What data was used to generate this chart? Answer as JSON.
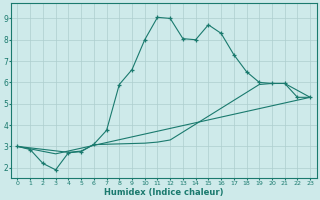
{
  "title": "",
  "xlabel": "Humidex (Indice chaleur)",
  "ylabel": "",
  "xlim": [
    -0.5,
    23.5
  ],
  "ylim": [
    1.5,
    9.7
  ],
  "xticks": [
    0,
    1,
    2,
    3,
    4,
    5,
    6,
    7,
    8,
    9,
    10,
    11,
    12,
    13,
    14,
    15,
    16,
    17,
    18,
    19,
    20,
    21,
    22,
    23
  ],
  "yticks": [
    2,
    3,
    4,
    5,
    6,
    7,
    8,
    9
  ],
  "line_color": "#1a7a6e",
  "bg_color": "#ceeaea",
  "grid_color": "#aecece",
  "line1_x": [
    0,
    1,
    2,
    3,
    4,
    5,
    6,
    7,
    8,
    9,
    10,
    11,
    12,
    13,
    14,
    15,
    16,
    17,
    18,
    19,
    20,
    21,
    22,
    23
  ],
  "line1_y": [
    3.0,
    2.85,
    2.2,
    1.9,
    2.7,
    2.75,
    3.1,
    3.75,
    5.9,
    6.6,
    8.0,
    9.05,
    9.0,
    8.05,
    8.0,
    8.7,
    8.3,
    7.3,
    6.5,
    6.0,
    5.95,
    5.95,
    5.3,
    5.3
  ],
  "line2_x": [
    0,
    4,
    5,
    6,
    7,
    10,
    11,
    12,
    19,
    20,
    21,
    23
  ],
  "line2_y": [
    3.0,
    2.72,
    2.78,
    3.08,
    3.1,
    3.15,
    3.2,
    3.3,
    5.9,
    5.95,
    5.95,
    5.3
  ],
  "line3_x": [
    0,
    3,
    23
  ],
  "line3_y": [
    3.0,
    2.65,
    5.3
  ]
}
